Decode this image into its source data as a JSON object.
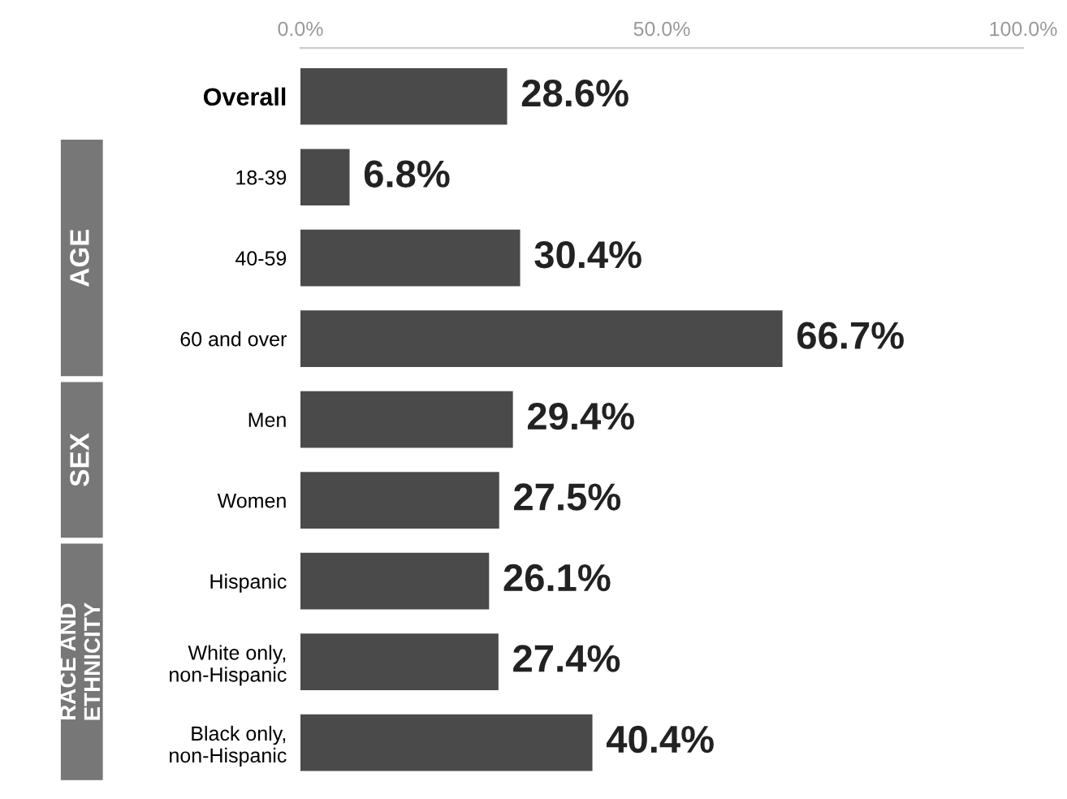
{
  "chart_data": {
    "type": "bar",
    "orientation": "horizontal",
    "categories": [
      "Overall",
      "18-39",
      "40-59",
      "60 and over",
      "Men",
      "Women",
      "Hispanic",
      "White only,\nnon-Hispanic",
      "Black only,\nnon-Hispanic"
    ],
    "values": [
      28.6,
      6.8,
      30.4,
      66.7,
      29.4,
      27.5,
      26.1,
      27.4,
      40.4
    ],
    "value_labels": [
      "28.6%",
      "6.8%",
      "30.4%",
      "66.7%",
      "29.4%",
      "27.5%",
      "26.1%",
      "27.4%",
      "40.4%"
    ],
    "color": "#4a4a4a",
    "xlim": [
      0,
      100
    ],
    "xticks": [
      {
        "value": 0,
        "label": "0.0%"
      },
      {
        "value": 50,
        "label": "50.0%"
      },
      {
        "value": 100,
        "label": "100.0%"
      }
    ],
    "grid": false,
    "annotations": [
      "AGE",
      "SEX",
      "RACE AND\nETHNICITY"
    ]
  }
}
